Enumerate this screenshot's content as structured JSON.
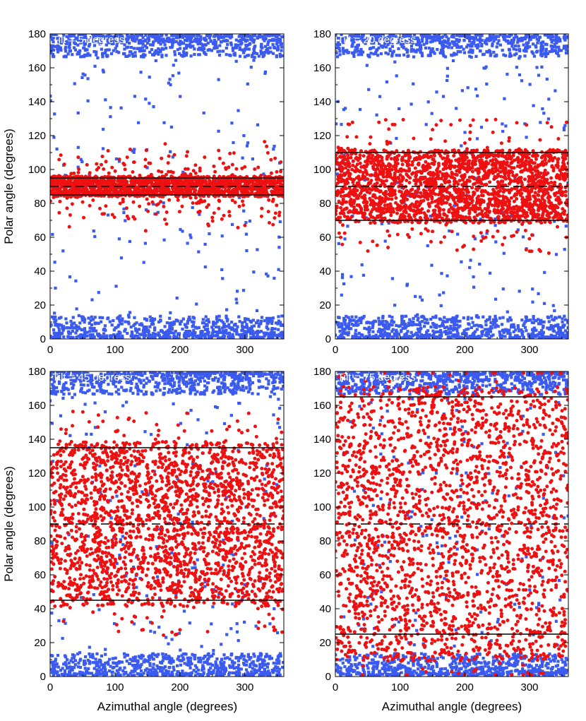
{
  "figure": {
    "xlabel": "Azimuthal angle (degrees)",
    "ylabel": "Polar angle (degrees)"
  },
  "colors": {
    "series_a": "#3a5af0",
    "series_b": "#ee1111",
    "reference_line": "#000000",
    "panel_label_text": "#ffffff"
  },
  "chart_data": [
    {
      "type": "scatter",
      "title": "Tilt = 5 degress",
      "tilt": 5,
      "xlim": [
        0,
        360
      ],
      "ylim": [
        0,
        180
      ],
      "xticks": [
        0,
        100,
        200,
        300
      ],
      "yticks": [
        0,
        20,
        40,
        60,
        80,
        100,
        120,
        140,
        160,
        180
      ],
      "reference_lines": [
        85,
        90,
        95
      ],
      "series": [
        {
          "name": "blue squares",
          "marker": "square",
          "color": "#3a5af0",
          "description": "dense bands near 0-10 and 170-180 degrees with sparse points in between"
        },
        {
          "name": "red circles",
          "marker": "circle",
          "color": "#ee1111",
          "description": "concentrated band spanning about 85-95 degrees"
        }
      ]
    },
    {
      "type": "scatter",
      "title": "Tilt = 20 degress",
      "tilt": 20,
      "xlim": [
        0,
        360
      ],
      "ylim": [
        0,
        180
      ],
      "xticks": [
        0,
        100,
        200,
        300
      ],
      "yticks": [
        0,
        20,
        40,
        60,
        80,
        100,
        120,
        140,
        160,
        180
      ],
      "reference_lines": [
        70,
        90,
        110
      ],
      "series": [
        {
          "name": "blue squares",
          "marker": "square",
          "color": "#3a5af0",
          "description": "dense bands near 0-10 and 170-180 degrees"
        },
        {
          "name": "red circles",
          "marker": "circle",
          "color": "#ee1111",
          "description": "band spanning about 70-110 degrees"
        }
      ]
    },
    {
      "type": "scatter",
      "title": "Tilt = 45 degress",
      "tilt": 45,
      "xlim": [
        0,
        360
      ],
      "ylim": [
        0,
        180
      ],
      "xticks": [
        0,
        100,
        200,
        300
      ],
      "yticks": [
        0,
        20,
        40,
        60,
        80,
        100,
        120,
        140,
        160,
        180
      ],
      "reference_lines": [
        45,
        90,
        135
      ],
      "series": [
        {
          "name": "blue squares",
          "marker": "square",
          "color": "#3a5af0",
          "description": "dense bands near 0-10 and 170-180 degrees"
        },
        {
          "name": "red circles",
          "marker": "circle",
          "color": "#ee1111",
          "description": "band spanning about 45-135 degrees"
        }
      ]
    },
    {
      "type": "scatter",
      "title": "Tilt = 75 degress",
      "tilt": 75,
      "xlim": [
        0,
        360
      ],
      "ylim": [
        0,
        180
      ],
      "xticks": [
        0,
        100,
        200,
        300
      ],
      "yticks": [
        0,
        20,
        40,
        60,
        80,
        100,
        120,
        140,
        160,
        180
      ],
      "reference_lines": [
        25,
        90,
        165
      ],
      "series": [
        {
          "name": "blue squares",
          "marker": "square",
          "color": "#3a5af0",
          "description": "dense bands near 0-10 and 170-180 degrees"
        },
        {
          "name": "red circles",
          "marker": "circle",
          "color": "#ee1111",
          "description": "broad band spanning about 15-165 degrees"
        }
      ]
    }
  ]
}
